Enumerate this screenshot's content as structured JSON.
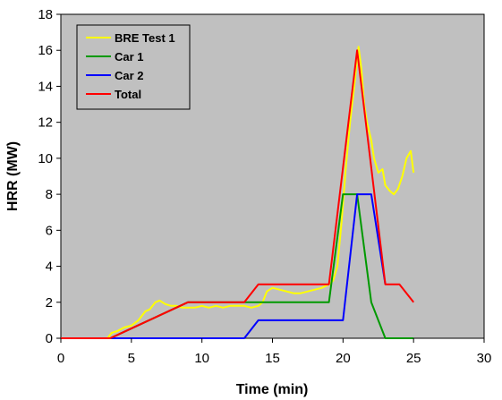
{
  "chart_data": {
    "type": "line",
    "title": "",
    "xlabel": "Time (min)",
    "ylabel": "HRR (MW)",
    "xlim": [
      0,
      30
    ],
    "ylim": [
      0,
      18
    ],
    "x_ticks": [
      0,
      5,
      10,
      15,
      20,
      25,
      30
    ],
    "y_ticks": [
      0,
      2,
      4,
      6,
      8,
      10,
      12,
      14,
      16,
      18
    ],
    "grid": false,
    "plot_background": "#c0c0c0",
    "legend_position": "top-left",
    "series": [
      {
        "name": "BRE Test 1",
        "color": "#ffff00",
        "x": [
          0,
          3.3,
          3.6,
          4,
          4.5,
          5,
          5.5,
          6,
          6.3,
          6.7,
          7,
          7.4,
          7.8,
          8.2,
          8.6,
          9,
          9.5,
          10,
          10.5,
          11,
          11.5,
          12,
          12.5,
          13,
          13.5,
          14,
          14.3,
          14.6,
          15,
          15.5,
          16,
          16.5,
          17,
          17.5,
          18,
          18.5,
          19,
          19.3,
          19.6,
          19.9,
          20.2,
          20.5,
          20.8,
          21,
          21.1,
          21.3,
          21.5,
          21.7,
          22,
          22.2,
          22.5,
          22.8,
          23,
          23.3,
          23.6,
          23.9,
          24.2,
          24.5,
          24.8,
          25
        ],
        "y": [
          0,
          0,
          0.3,
          0.4,
          0.6,
          0.7,
          1.0,
          1.5,
          1.6,
          2.0,
          2.1,
          1.9,
          1.8,
          1.8,
          1.7,
          1.7,
          1.7,
          1.8,
          1.7,
          1.8,
          1.7,
          1.8,
          1.8,
          1.8,
          1.7,
          1.8,
          2.0,
          2.6,
          2.8,
          2.7,
          2.6,
          2.5,
          2.5,
          2.6,
          2.7,
          2.8,
          3.0,
          3.2,
          4.0,
          6.5,
          9.5,
          12.0,
          14.0,
          15.5,
          16.2,
          15.0,
          13.0,
          12.0,
          11.0,
          10.0,
          9.2,
          9.4,
          8.5,
          8.2,
          8.0,
          8.3,
          9.0,
          10.0,
          10.4,
          9.2
        ]
      },
      {
        "name": "Car 1",
        "color": "#009900",
        "x": [
          0,
          3.5,
          9,
          13,
          14,
          19,
          20,
          21,
          22,
          23,
          25
        ],
        "y": [
          0,
          0,
          2,
          2,
          2,
          2,
          8,
          8,
          2,
          0,
          0
        ]
      },
      {
        "name": "Car 2",
        "color": "#0000ff",
        "x": [
          0,
          13,
          14,
          20,
          21,
          22,
          23
        ],
        "y": [
          0,
          0,
          1,
          1,
          8,
          8,
          3
        ]
      },
      {
        "name": "Total",
        "color": "#ff0000",
        "x": [
          0,
          3.5,
          9,
          13,
          14,
          19,
          21,
          23,
          24,
          25
        ],
        "y": [
          0,
          0,
          2,
          2,
          3,
          3,
          16,
          3,
          3,
          2
        ]
      }
    ]
  }
}
